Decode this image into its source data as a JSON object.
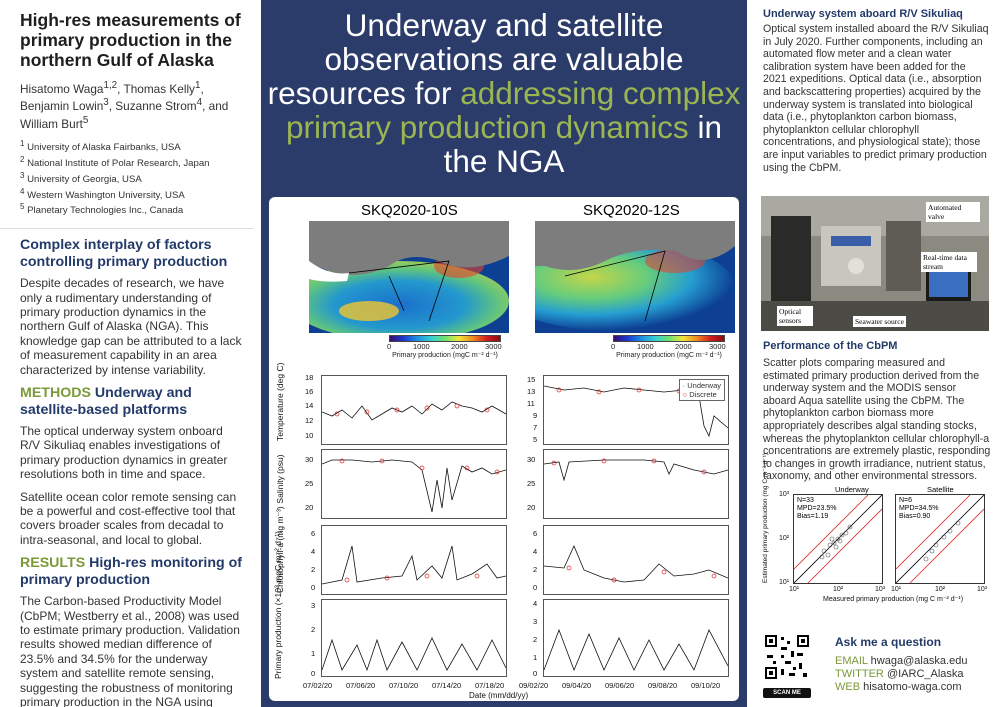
{
  "poster": {
    "title": "High-res measurements of primary production in the northern Gulf of Alaska",
    "authors_html": "Hisatomo Waga<sup>1,2</sup>, Thomas Kelly<sup>1</sup>, Benjamin Lowin<sup>3</sup>, Suzanne Strom<sup>4</sup>, and William Burt<sup>5</sup>",
    "affiliations": [
      {
        "num": "1",
        "text": "University of Alaska Fairbanks, USA"
      },
      {
        "num": "2",
        "text": "National Institute of Polar Research, Japan"
      },
      {
        "num": "3",
        "text": "University of Georgia, USA"
      },
      {
        "num": "4",
        "text": "Western Washington University, USA"
      },
      {
        "num": "5",
        "text": "Planetary Technologies Inc., Canada"
      }
    ]
  },
  "left": {
    "intro_heading": "Complex interplay of factors controlling primary production",
    "intro_text": "Despite decades of research, we have only a rudimentary understanding of primary production dynamics in the northern Gulf of Alaska (NGA). This knowledge gap can be attributed to a lack of measurement capability in an area characterized by intense variability.",
    "methods_kw": "METHODS",
    "methods_heading": " Underway and satellite-based platforms",
    "methods_text1": "The optical underway system onboard R/V Sikuliaq enables investigations of primary production dynamics in greater resolutions both in time and space.",
    "methods_text2": "Satellite ocean color remote sensing can be a powerful and cost-effective tool that covers broader scales from decadal to intra-seasonal, and local to global.",
    "results_kw": "RESULTS",
    "results_heading": " High-res monitoring of primary production",
    "results_text": "The Carbon-based Productivity Model (CbPM; Westberry et al., 2008) was used to estimate primary production. Validation results showed median difference of 23.5% and 34.5% for the underway system and satellite remote sensing, suggesting the robustness of monitoring primary production in the NGA using these platforms."
  },
  "center": {
    "banner_1": "Underway and satellite observations are valuable resources for ",
    "banner_hl": "addressing complex primary production dynamics",
    "banner_2": " in the NGA",
    "map_left_title": "SKQ2020-10S",
    "map_right_title": "SKQ2020-12S",
    "cbar_ticks": [
      "0",
      "1000",
      "2000",
      "3000"
    ],
    "cbar_label": "Primary production (mgC m⁻² d⁻¹)",
    "legend_underway": "Underway",
    "legend_discrete": "Discrete",
    "ylabels": [
      "Temperature (deg C)",
      "Salinity (psu)",
      "Chlorophyll-a (mg m⁻³)",
      "Primary production (×10³ mgC m⁻² d⁻¹)"
    ],
    "left_yticks": [
      [
        "18",
        "16",
        "14",
        "12",
        "10"
      ],
      [
        "30",
        "25",
        "20"
      ],
      [
        "6",
        "4",
        "2",
        "0"
      ],
      [
        "3",
        "2",
        "1",
        "0"
      ]
    ],
    "right_yticks": [
      [
        "15",
        "13",
        "11",
        "9",
        "7",
        "5"
      ],
      [
        "30",
        "25",
        "20"
      ],
      [
        "6",
        "4",
        "2",
        "0"
      ],
      [
        "4",
        "3",
        "2",
        "1",
        "0"
      ]
    ],
    "left_xticks": [
      "07/02/20",
      "07/06/20",
      "07/10/20",
      "07/14/20",
      "07/18/20"
    ],
    "right_xticks": [
      "09/02/20",
      "09/04/20",
      "09/06/20",
      "09/08/20",
      "09/10/20"
    ],
    "xlabel": "Date (mm/dd/yy)"
  },
  "right": {
    "underway_heading": "Underway system aboard R/V Sikuliaq",
    "underway_text": "Optical system installed aboard the R/V Sikuliaq in July 2020. Further components, including an automated flow meter and a clean water calibration system have been added for the 2021 expeditions. Optical data (i.e., absorption and backscattering properties) acquired by the underway system is translated into biological data (i.e., phytoplankton carbon biomass, phytoplankton cellular chlorophyll concentrations, and physiological state); those are input variables to predict primary production using the CbPM.",
    "photo_labels": {
      "valve": "Automated valve",
      "stream": "Real-time data stream",
      "optical": "Optical sensors",
      "seawater": "Seawater source"
    },
    "perf_heading": "Performance of the CbPM",
    "perf_text": "Scatter plots comparing measured and estimated primary production derived from the underway system and the MODIS sensor aboard Aqua satellite using the CbPM. The phytoplankton carbon biomass more appropriately describes algal standing stocks, whereas the phytoplankton cellular chlorophyll-a concentrations are extremely plastic, responding to changes in growth irradiance, nutrient status, taxonomy, and other environmental stressors.",
    "scatter": {
      "underway_title": "Underway",
      "satellite_title": "Satellite",
      "underway_stats": [
        "N=33",
        "MPD=23.5%",
        "Bias=1.19"
      ],
      "satellite_stats": [
        "N=6",
        "MPD=34.5%",
        "Bias=0.90"
      ],
      "ylabel": "Estimated primary production (mg C m⁻² d⁻¹)",
      "xlabel": "Measured primary production (mg C m⁻² d⁻¹)",
      "ticks": [
        "10¹",
        "10²",
        "10³"
      ]
    },
    "ask_heading": "Ask me a question",
    "scan_me": "SCAN ME",
    "contacts": [
      {
        "key": "EMAIL",
        "value": "hwaga@alaska.edu"
      },
      {
        "key": "TWITTER",
        "value": "@IARC_Alaska"
      },
      {
        "key": "WEB",
        "value": "hisatomo-waga.com"
      }
    ]
  }
}
